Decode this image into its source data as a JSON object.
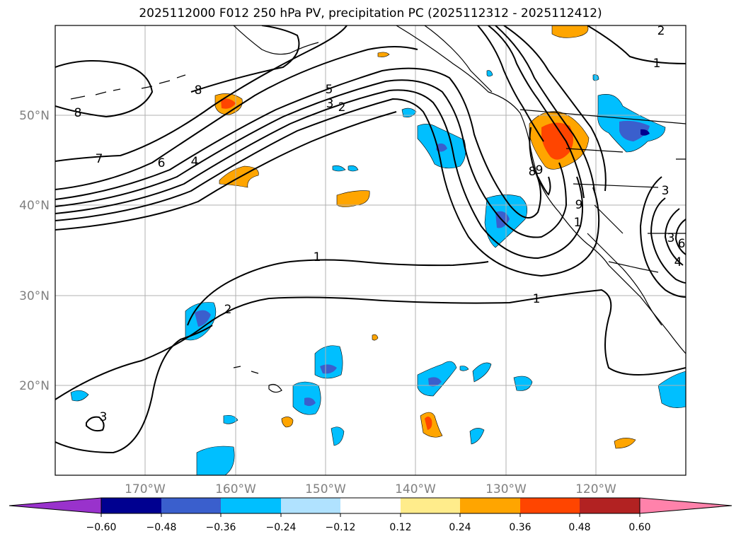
{
  "title": "2025112000 F012 250 hPa PV, precipitation PC (2025112312 - 2025112412)",
  "map": {
    "lat_labels": [
      "50°N",
      "40°N",
      "30°N",
      "20°N"
    ],
    "lon_labels": [
      "170°W",
      "160°W",
      "150°W",
      "140°W",
      "130°W",
      "120°W"
    ],
    "contour_labels": [
      "8",
      "8",
      "7",
      "6",
      "4",
      "5",
      "3",
      "2",
      "1",
      "1",
      "1",
      "2",
      "2",
      "3",
      "8",
      "9",
      "9",
      "3",
      "3",
      "6",
      "4",
      "1"
    ]
  },
  "colorbar": {
    "tick_labels": [
      "−0.60",
      "−0.48",
      "−0.36",
      "−0.24",
      "−0.12",
      "0.12",
      "0.24",
      "0.36",
      "0.48",
      "0.60"
    ],
    "colors": [
      "#9932cc",
      "#000090",
      "#3a5fcd",
      "#00bfff",
      "#b0e2ff",
      "#ffffff",
      "#ffec8b",
      "#ffa500",
      "#ff4500",
      "#b22222",
      "#ff82ab"
    ]
  }
}
